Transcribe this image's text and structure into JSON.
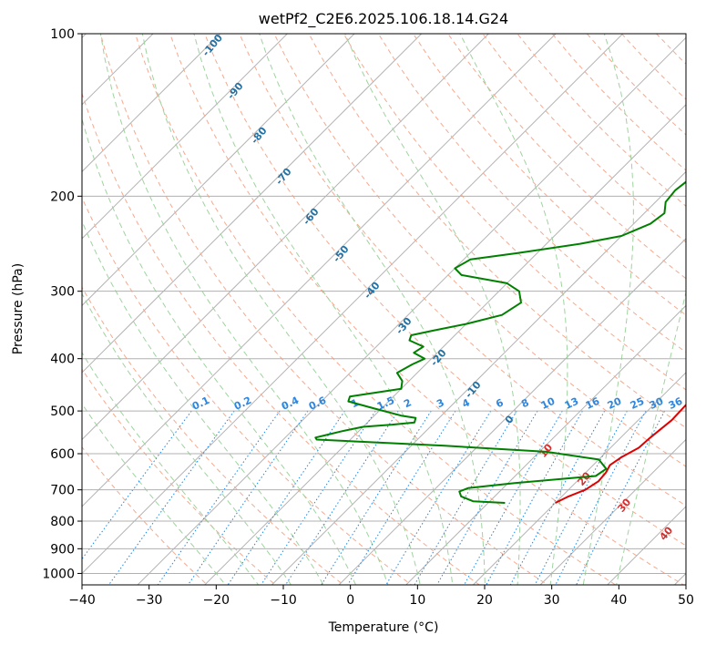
{
  "chart_data": {
    "type": "line",
    "title": "wetPf2_C2E6.2025.106.18.14.G24",
    "xlabel": "Temperature (°C)",
    "ylabel": "Pressure (hPa)",
    "xlim": [
      -40,
      50
    ],
    "ylim": [
      1050,
      100
    ],
    "yscale": "log",
    "grid": true,
    "x_ticks": [
      -40,
      -30,
      -20,
      -10,
      0,
      10,
      20,
      30,
      40,
      50
    ],
    "y_ticks": [
      100,
      200,
      300,
      400,
      500,
      600,
      700,
      800,
      900,
      1000
    ],
    "isotherm_labels": [
      "-100",
      "-90",
      "-80",
      "-70",
      "-60",
      "-50",
      "-40",
      "-30",
      "-20",
      "-10",
      "0",
      "10",
      "20",
      "30",
      "40"
    ],
    "mixing_ratio_labels": [
      "0.1",
      "0.2",
      "0.4",
      "0.6",
      "1",
      "1.5",
      "2",
      "3",
      "4",
      "6",
      "8",
      "10",
      "13",
      "16",
      "20",
      "25",
      "30",
      "36"
    ],
    "series": [
      {
        "color": "#e00000",
        "points": [
          [
            20,
            740
          ],
          [
            21,
            720
          ],
          [
            22.5,
            700
          ],
          [
            23.2,
            675
          ],
          [
            23,
            650
          ],
          [
            22.5,
            630
          ],
          [
            23,
            610
          ],
          [
            24.2,
            585
          ],
          [
            24.4,
            560
          ],
          [
            25,
            520
          ],
          [
            24.8,
            480
          ],
          [
            24,
            460
          ],
          [
            22,
            440
          ],
          [
            20.5,
            420
          ],
          [
            19.5,
            405
          ],
          [
            19,
            390
          ],
          [
            19.5,
            375
          ],
          [
            19.2,
            360
          ],
          [
            18.5,
            345
          ],
          [
            16,
            320
          ],
          [
            13,
            295
          ],
          [
            10.5,
            270
          ],
          [
            10,
            255
          ],
          [
            8,
            238
          ],
          [
            6.5,
            225
          ],
          [
            4.5,
            210
          ],
          [
            2.5,
            195
          ],
          [
            0.5,
            180
          ],
          [
            -1.5,
            168
          ],
          [
            -2.5,
            155
          ],
          [
            -3.5,
            140
          ],
          [
            -4.5,
            128
          ],
          [
            -5.5,
            120
          ],
          [
            -7,
            112
          ],
          [
            -8,
            105
          ],
          [
            -9,
            100
          ]
        ]
      },
      {
        "color": "#008000",
        "points": [
          [
            12.5,
            740
          ],
          [
            7.5,
            735
          ],
          [
            5,
            720
          ],
          [
            4,
            705
          ],
          [
            4.8,
            695
          ],
          [
            11,
            680
          ],
          [
            22,
            660
          ],
          [
            22.5,
            640
          ],
          [
            20,
            615
          ],
          [
            11,
            595
          ],
          [
            -5,
            580
          ],
          [
            -25,
            565
          ],
          [
            -25.5,
            560
          ],
          [
            -24.5,
            555
          ],
          [
            -22.5,
            545
          ],
          [
            -20,
            535
          ],
          [
            -16,
            530
          ],
          [
            -13,
            525
          ],
          [
            -13.5,
            515
          ],
          [
            -16,
            510
          ],
          [
            -21,
            495
          ],
          [
            -26,
            480
          ],
          [
            -26.5,
            470
          ],
          [
            -20,
            455
          ],
          [
            -21,
            440
          ],
          [
            -23,
            425
          ],
          [
            -22,
            410
          ],
          [
            -21,
            400
          ],
          [
            -23.5,
            390
          ],
          [
            -23,
            380
          ],
          [
            -26,
            370
          ],
          [
            -26.5,
            362
          ],
          [
            -24,
            355
          ],
          [
            -20,
            345
          ],
          [
            -16,
            332
          ],
          [
            -15,
            315
          ],
          [
            -17,
            300
          ],
          [
            -20,
            290
          ],
          [
            -28,
            280
          ],
          [
            -30,
            272
          ],
          [
            -29,
            262
          ],
          [
            -23,
            255
          ],
          [
            -15,
            245
          ],
          [
            -10,
            237
          ],
          [
            -7.5,
            225
          ],
          [
            -7,
            215
          ],
          [
            -8.5,
            205
          ],
          [
            -8.8,
            195
          ],
          [
            -8.3,
            185
          ],
          [
            -8.5,
            175
          ],
          [
            -8,
            165
          ],
          [
            -8,
            155
          ],
          [
            -9,
            145
          ],
          [
            -10,
            135
          ],
          [
            -10.5,
            128
          ],
          [
            -11,
            122
          ],
          [
            -12,
            117
          ],
          [
            -12.5,
            112
          ],
          [
            -12.5,
            106
          ],
          [
            -12,
            100
          ]
        ]
      }
    ]
  }
}
